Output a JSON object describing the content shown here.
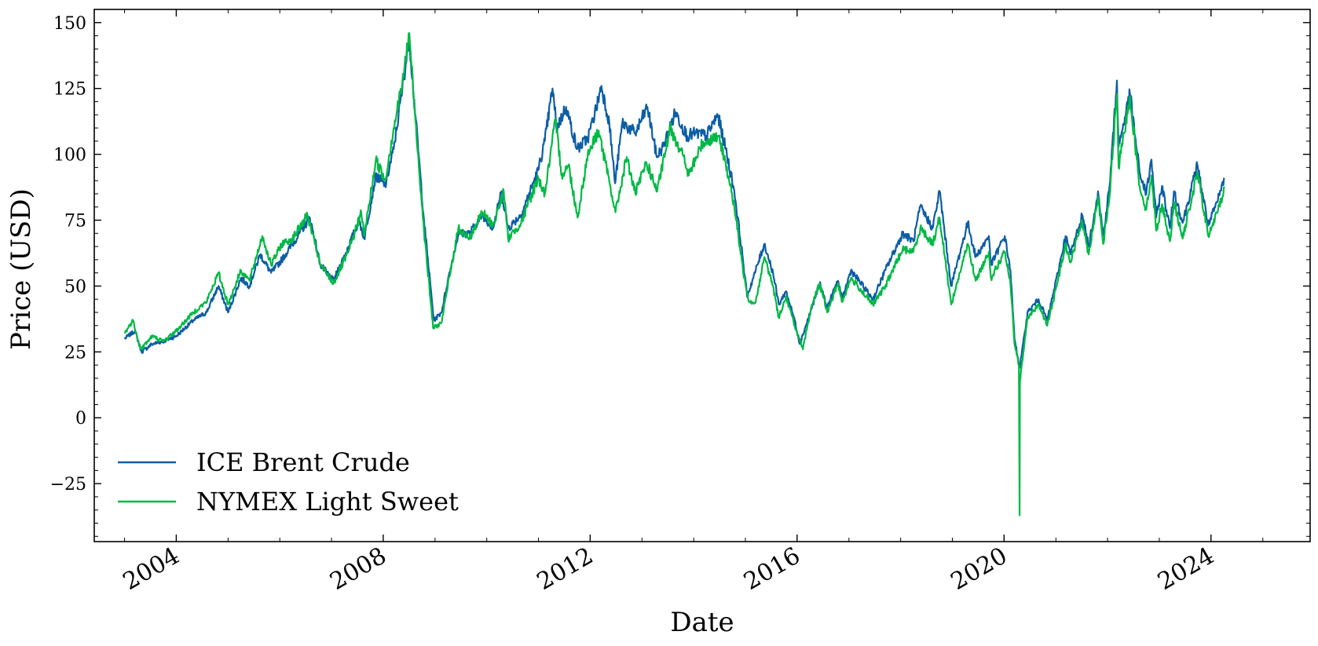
{
  "chart_data": {
    "type": "line",
    "title": "",
    "xlabel": "Date",
    "ylabel": "Price (USD)",
    "xlim": [
      "2002-06-01",
      "2025-12-01"
    ],
    "ylim": [
      -47,
      155
    ],
    "x_ticks": [
      {
        "date": "2004-01-01",
        "label": "2004"
      },
      {
        "date": "2008-01-01",
        "label": "2008"
      },
      {
        "date": "2012-01-01",
        "label": "2012"
      },
      {
        "date": "2016-01-01",
        "label": "2016"
      },
      {
        "date": "2020-01-01",
        "label": "2020"
      },
      {
        "date": "2024-01-01",
        "label": "2024"
      }
    ],
    "y_ticks": [
      {
        "value": 150,
        "label": "150"
      },
      {
        "value": 125,
        "label": "125"
      },
      {
        "value": 100,
        "label": "100"
      },
      {
        "value": 75,
        "label": "75"
      },
      {
        "value": 50,
        "label": "50"
      },
      {
        "value": 25,
        "label": "25"
      },
      {
        "value": 0,
        "label": "0"
      },
      {
        "value": -25,
        "label": "−25"
      }
    ],
    "grid": false,
    "legend_position": "lower-left",
    "series": [
      {
        "name": "ICE Brent Crude",
        "color": "#0C5DA5",
        "points": [
          [
            "2003-01-01",
            30
          ],
          [
            "2003-03-15",
            33
          ],
          [
            "2003-05-01",
            25
          ],
          [
            "2003-07-15",
            28
          ],
          [
            "2003-10-01",
            29
          ],
          [
            "2004-01-01",
            31
          ],
          [
            "2004-05-01",
            37
          ],
          [
            "2004-08-01",
            40
          ],
          [
            "2004-10-25",
            50
          ],
          [
            "2005-01-01",
            40
          ],
          [
            "2005-04-01",
            53
          ],
          [
            "2005-06-01",
            50
          ],
          [
            "2005-08-15",
            62
          ],
          [
            "2005-11-01",
            55
          ],
          [
            "2006-01-15",
            60
          ],
          [
            "2006-04-01",
            66
          ],
          [
            "2006-08-01",
            76
          ],
          [
            "2006-10-15",
            58
          ],
          [
            "2007-01-15",
            52
          ],
          [
            "2007-05-01",
            65
          ],
          [
            "2007-07-15",
            75
          ],
          [
            "2007-08-20",
            68
          ],
          [
            "2007-11-10",
            92
          ],
          [
            "2008-01-15",
            88
          ],
          [
            "2008-03-15",
            102
          ],
          [
            "2008-05-15",
            125
          ],
          [
            "2008-07-03",
            144
          ],
          [
            "2008-08-15",
            115
          ],
          [
            "2008-10-15",
            75
          ],
          [
            "2008-12-24",
            37
          ],
          [
            "2009-02-15",
            40
          ],
          [
            "2009-04-01",
            52
          ],
          [
            "2009-06-15",
            70
          ],
          [
            "2009-09-01",
            70
          ],
          [
            "2009-12-01",
            77
          ],
          [
            "2010-02-15",
            72
          ],
          [
            "2010-04-15",
            86
          ],
          [
            "2010-06-01",
            72
          ],
          [
            "2010-09-01",
            77
          ],
          [
            "2010-12-30",
            94
          ],
          [
            "2011-02-15",
            105
          ],
          [
            "2011-04-10",
            125
          ],
          [
            "2011-05-10",
            110
          ],
          [
            "2011-07-15",
            118
          ],
          [
            "2011-10-01",
            102
          ],
          [
            "2011-12-15",
            106
          ],
          [
            "2012-02-15",
            118
          ],
          [
            "2012-03-20",
            126
          ],
          [
            "2012-05-15",
            112
          ],
          [
            "2012-06-25",
            89
          ],
          [
            "2012-08-15",
            112
          ],
          [
            "2012-11-15",
            108
          ],
          [
            "2013-02-08",
            118
          ],
          [
            "2013-04-15",
            99
          ],
          [
            "2013-06-01",
            103
          ],
          [
            "2013-08-25",
            116
          ],
          [
            "2013-11-15",
            107
          ],
          [
            "2014-01-15",
            108
          ],
          [
            "2014-04-01",
            107
          ],
          [
            "2014-06-20",
            115
          ],
          [
            "2014-08-15",
            102
          ],
          [
            "2014-10-15",
            86
          ],
          [
            "2014-12-15",
            60
          ],
          [
            "2015-01-13",
            46
          ],
          [
            "2015-03-15",
            56
          ],
          [
            "2015-05-15",
            66
          ],
          [
            "2015-07-15",
            55
          ],
          [
            "2015-08-25",
            43
          ],
          [
            "2015-10-15",
            48
          ],
          [
            "2015-12-15",
            37
          ],
          [
            "2016-01-20",
            28
          ],
          [
            "2016-04-15",
            42
          ],
          [
            "2016-06-08",
            51
          ],
          [
            "2016-08-01",
            42
          ],
          [
            "2016-10-15",
            52
          ],
          [
            "2016-11-15",
            45
          ],
          [
            "2017-01-15",
            56
          ],
          [
            "2017-06-20",
            45
          ],
          [
            "2017-09-15",
            56
          ],
          [
            "2018-01-15",
            70
          ],
          [
            "2018-04-01",
            67
          ],
          [
            "2018-05-20",
            80
          ],
          [
            "2018-08-15",
            72
          ],
          [
            "2018-10-03",
            86
          ],
          [
            "2018-12-24",
            50
          ],
          [
            "2019-04-20",
            74
          ],
          [
            "2019-06-15",
            61
          ],
          [
            "2019-09-16",
            69
          ],
          [
            "2019-10-01",
            58
          ],
          [
            "2020-01-06",
            69
          ],
          [
            "2020-02-15",
            56
          ],
          [
            "2020-03-15",
            30
          ],
          [
            "2020-04-21",
            19
          ],
          [
            "2020-06-15",
            40
          ],
          [
            "2020-09-01",
            45
          ],
          [
            "2020-11-01",
            37
          ],
          [
            "2021-01-15",
            55
          ],
          [
            "2021-03-10",
            69
          ],
          [
            "2021-04-15",
            62
          ],
          [
            "2021-07-05",
            77
          ],
          [
            "2021-08-20",
            65
          ],
          [
            "2021-10-25",
            86
          ],
          [
            "2021-12-01",
            69
          ],
          [
            "2022-01-15",
            88
          ],
          [
            "2022-03-08",
            128
          ],
          [
            "2022-03-20",
            103
          ],
          [
            "2022-06-08",
            123
          ],
          [
            "2022-08-15",
            93
          ],
          [
            "2022-10-01",
            85
          ],
          [
            "2022-11-07",
            98
          ],
          [
            "2022-12-10",
            76
          ],
          [
            "2023-01-20",
            88
          ],
          [
            "2023-03-17",
            72
          ],
          [
            "2023-04-15",
            86
          ],
          [
            "2023-06-15",
            74
          ],
          [
            "2023-09-27",
            96
          ],
          [
            "2023-12-13",
            73
          ],
          [
            "2024-02-15",
            82
          ],
          [
            "2024-04-05",
            91
          ]
        ]
      },
      {
        "name": "NYMEX Light Sweet",
        "color": "#00B945",
        "points": [
          [
            "2003-01-01",
            32
          ],
          [
            "2003-03-01",
            37
          ],
          [
            "2003-04-25",
            26
          ],
          [
            "2003-07-15",
            31
          ],
          [
            "2003-10-01",
            29
          ],
          [
            "2004-01-01",
            33
          ],
          [
            "2004-05-01",
            40
          ],
          [
            "2004-08-01",
            44
          ],
          [
            "2004-10-25",
            55
          ],
          [
            "2005-01-01",
            43
          ],
          [
            "2005-04-01",
            56
          ],
          [
            "2005-06-01",
            52
          ],
          [
            "2005-08-30",
            69
          ],
          [
            "2005-11-01",
            58
          ],
          [
            "2006-01-15",
            66
          ],
          [
            "2006-04-01",
            68
          ],
          [
            "2006-07-15",
            77
          ],
          [
            "2006-10-15",
            58
          ],
          [
            "2007-01-15",
            51
          ],
          [
            "2007-05-01",
            63
          ],
          [
            "2007-07-30",
            78
          ],
          [
            "2007-08-20",
            69
          ],
          [
            "2007-11-10",
            98
          ],
          [
            "2008-01-15",
            90
          ],
          [
            "2008-03-15",
            110
          ],
          [
            "2008-05-15",
            127
          ],
          [
            "2008-07-03",
            146
          ],
          [
            "2008-08-15",
            113
          ],
          [
            "2008-10-15",
            71
          ],
          [
            "2008-12-19",
            34
          ],
          [
            "2009-02-15",
            36
          ],
          [
            "2009-04-01",
            50
          ],
          [
            "2009-06-15",
            72
          ],
          [
            "2009-09-01",
            68
          ],
          [
            "2009-12-01",
            78
          ],
          [
            "2010-02-15",
            73
          ],
          [
            "2010-05-01",
            86
          ],
          [
            "2010-06-01",
            68
          ],
          [
            "2010-09-01",
            74
          ],
          [
            "2010-12-30",
            91
          ],
          [
            "2011-02-15",
            85
          ],
          [
            "2011-05-01",
            113
          ],
          [
            "2011-06-15",
            92
          ],
          [
            "2011-08-01",
            96
          ],
          [
            "2011-10-04",
            76
          ],
          [
            "2011-12-15",
            100
          ],
          [
            "2012-03-01",
            109
          ],
          [
            "2012-06-28",
            78
          ],
          [
            "2012-09-15",
            99
          ],
          [
            "2012-11-15",
            85
          ],
          [
            "2013-02-01",
            97
          ],
          [
            "2013-04-18",
            86
          ],
          [
            "2013-07-20",
            110
          ],
          [
            "2013-10-15",
            100
          ],
          [
            "2013-11-27",
            92
          ],
          [
            "2014-03-01",
            104
          ],
          [
            "2014-06-20",
            107
          ],
          [
            "2014-08-15",
            97
          ],
          [
            "2014-10-15",
            80
          ],
          [
            "2014-12-15",
            56
          ],
          [
            "2015-01-28",
            44
          ],
          [
            "2015-03-15",
            44
          ],
          [
            "2015-05-15",
            61
          ],
          [
            "2015-07-15",
            50
          ],
          [
            "2015-08-24",
            38
          ],
          [
            "2015-10-15",
            46
          ],
          [
            "2015-12-15",
            35
          ],
          [
            "2016-02-11",
            26
          ],
          [
            "2016-04-15",
            43
          ],
          [
            "2016-06-08",
            51
          ],
          [
            "2016-08-01",
            40
          ],
          [
            "2016-10-15",
            51
          ],
          [
            "2016-11-15",
            44
          ],
          [
            "2017-01-15",
            53
          ],
          [
            "2017-06-20",
            43
          ],
          [
            "2017-09-15",
            50
          ],
          [
            "2018-01-15",
            64
          ],
          [
            "2018-04-01",
            63
          ],
          [
            "2018-05-20",
            72
          ],
          [
            "2018-08-15",
            66
          ],
          [
            "2018-10-03",
            76
          ],
          [
            "2018-12-24",
            43
          ],
          [
            "2019-04-20",
            66
          ],
          [
            "2019-06-15",
            52
          ],
          [
            "2019-09-16",
            63
          ],
          [
            "2019-10-01",
            53
          ],
          [
            "2020-01-06",
            63
          ],
          [
            "2020-02-15",
            51
          ],
          [
            "2020-03-15",
            28
          ],
          [
            "2020-04-15",
            20
          ],
          [
            "2020-04-20",
            -37
          ],
          [
            "2020-04-22",
            14
          ],
          [
            "2020-06-15",
            38
          ],
          [
            "2020-09-01",
            43
          ],
          [
            "2020-11-01",
            35
          ],
          [
            "2021-01-15",
            52
          ],
          [
            "2021-03-10",
            66
          ],
          [
            "2021-04-15",
            59
          ],
          [
            "2021-07-05",
            75
          ],
          [
            "2021-08-20",
            62
          ],
          [
            "2021-10-25",
            84
          ],
          [
            "2021-12-01",
            66
          ],
          [
            "2022-01-15",
            84
          ],
          [
            "2022-03-08",
            123
          ],
          [
            "2022-03-20",
            95
          ],
          [
            "2022-06-08",
            122
          ],
          [
            "2022-08-15",
            88
          ],
          [
            "2022-10-01",
            79
          ],
          [
            "2022-11-07",
            92
          ],
          [
            "2022-12-10",
            71
          ],
          [
            "2023-01-20",
            81
          ],
          [
            "2023-03-17",
            67
          ],
          [
            "2023-04-15",
            82
          ],
          [
            "2023-06-15",
            68
          ],
          [
            "2023-09-27",
            93
          ],
          [
            "2023-12-13",
            69
          ],
          [
            "2024-02-15",
            78
          ],
          [
            "2024-04-05",
            87
          ]
        ]
      }
    ]
  }
}
